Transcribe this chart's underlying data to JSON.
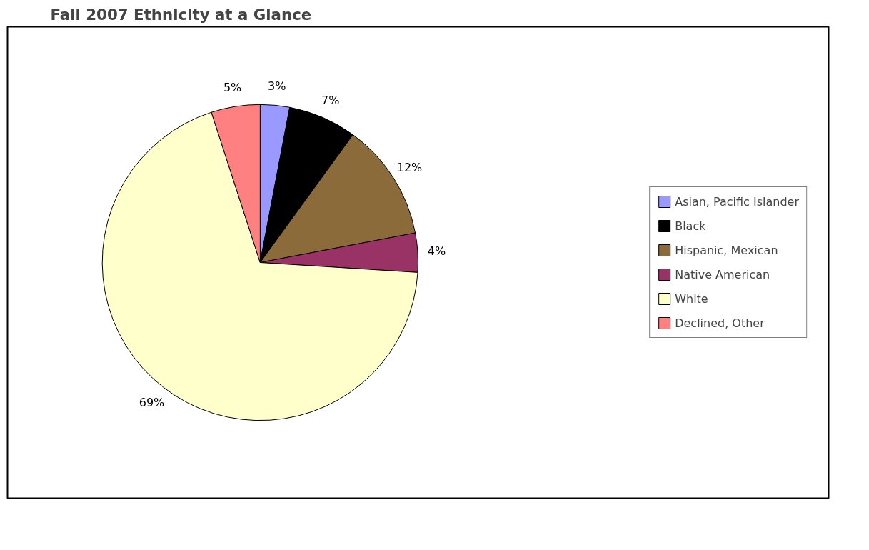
{
  "chart_data": {
    "type": "pie",
    "title": "Fall 2007 Ethnicity at a Glance",
    "categories": [
      "Asian, Pacific Islander",
      "Black",
      "Hispanic, Mexican",
      "Native American",
      "White",
      "Declined, Other"
    ],
    "values": [
      3,
      7,
      12,
      4,
      69,
      5
    ],
    "colors": [
      "#9999ff",
      "#000000",
      "#8b6b3a",
      "#993366",
      "#ffffcc",
      "#ff8080"
    ],
    "value_labels": [
      "3%",
      "7%",
      "12%",
      "4%",
      "69%",
      "5%"
    ],
    "legend": "right"
  }
}
